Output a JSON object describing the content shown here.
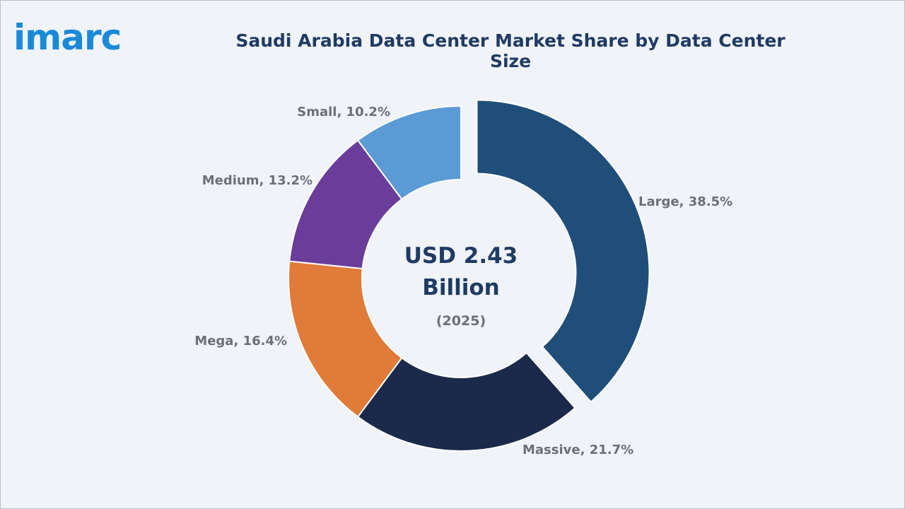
{
  "brand": {
    "name": "imarc",
    "color": "#1a8ad8"
  },
  "chart_data": {
    "type": "pie",
    "title": "Saudi Arabia Data Center Market Share by Data Center Size",
    "center_text": {
      "line1": "USD 2.43",
      "line2": "Billion",
      "line3": "(2025)"
    },
    "categories": [
      "Large",
      "Massive",
      "Mega",
      "Medium",
      "Small"
    ],
    "values": [
      38.5,
      21.7,
      16.4,
      13.2,
      10.2
    ],
    "labels": [
      "Large, 38.5%",
      "Massive, 21.7%",
      "Mega, 16.4%",
      "Medium, 13.2%",
      "Small, 10.2%"
    ],
    "colors": [
      "#1f4e79",
      "#1b2a4a",
      "#e07b39",
      "#6a3d9a",
      "#5b9bd5"
    ],
    "exploded": [
      "Large"
    ],
    "title_color": "#1f3b63",
    "label_color": "#6b6f77"
  }
}
